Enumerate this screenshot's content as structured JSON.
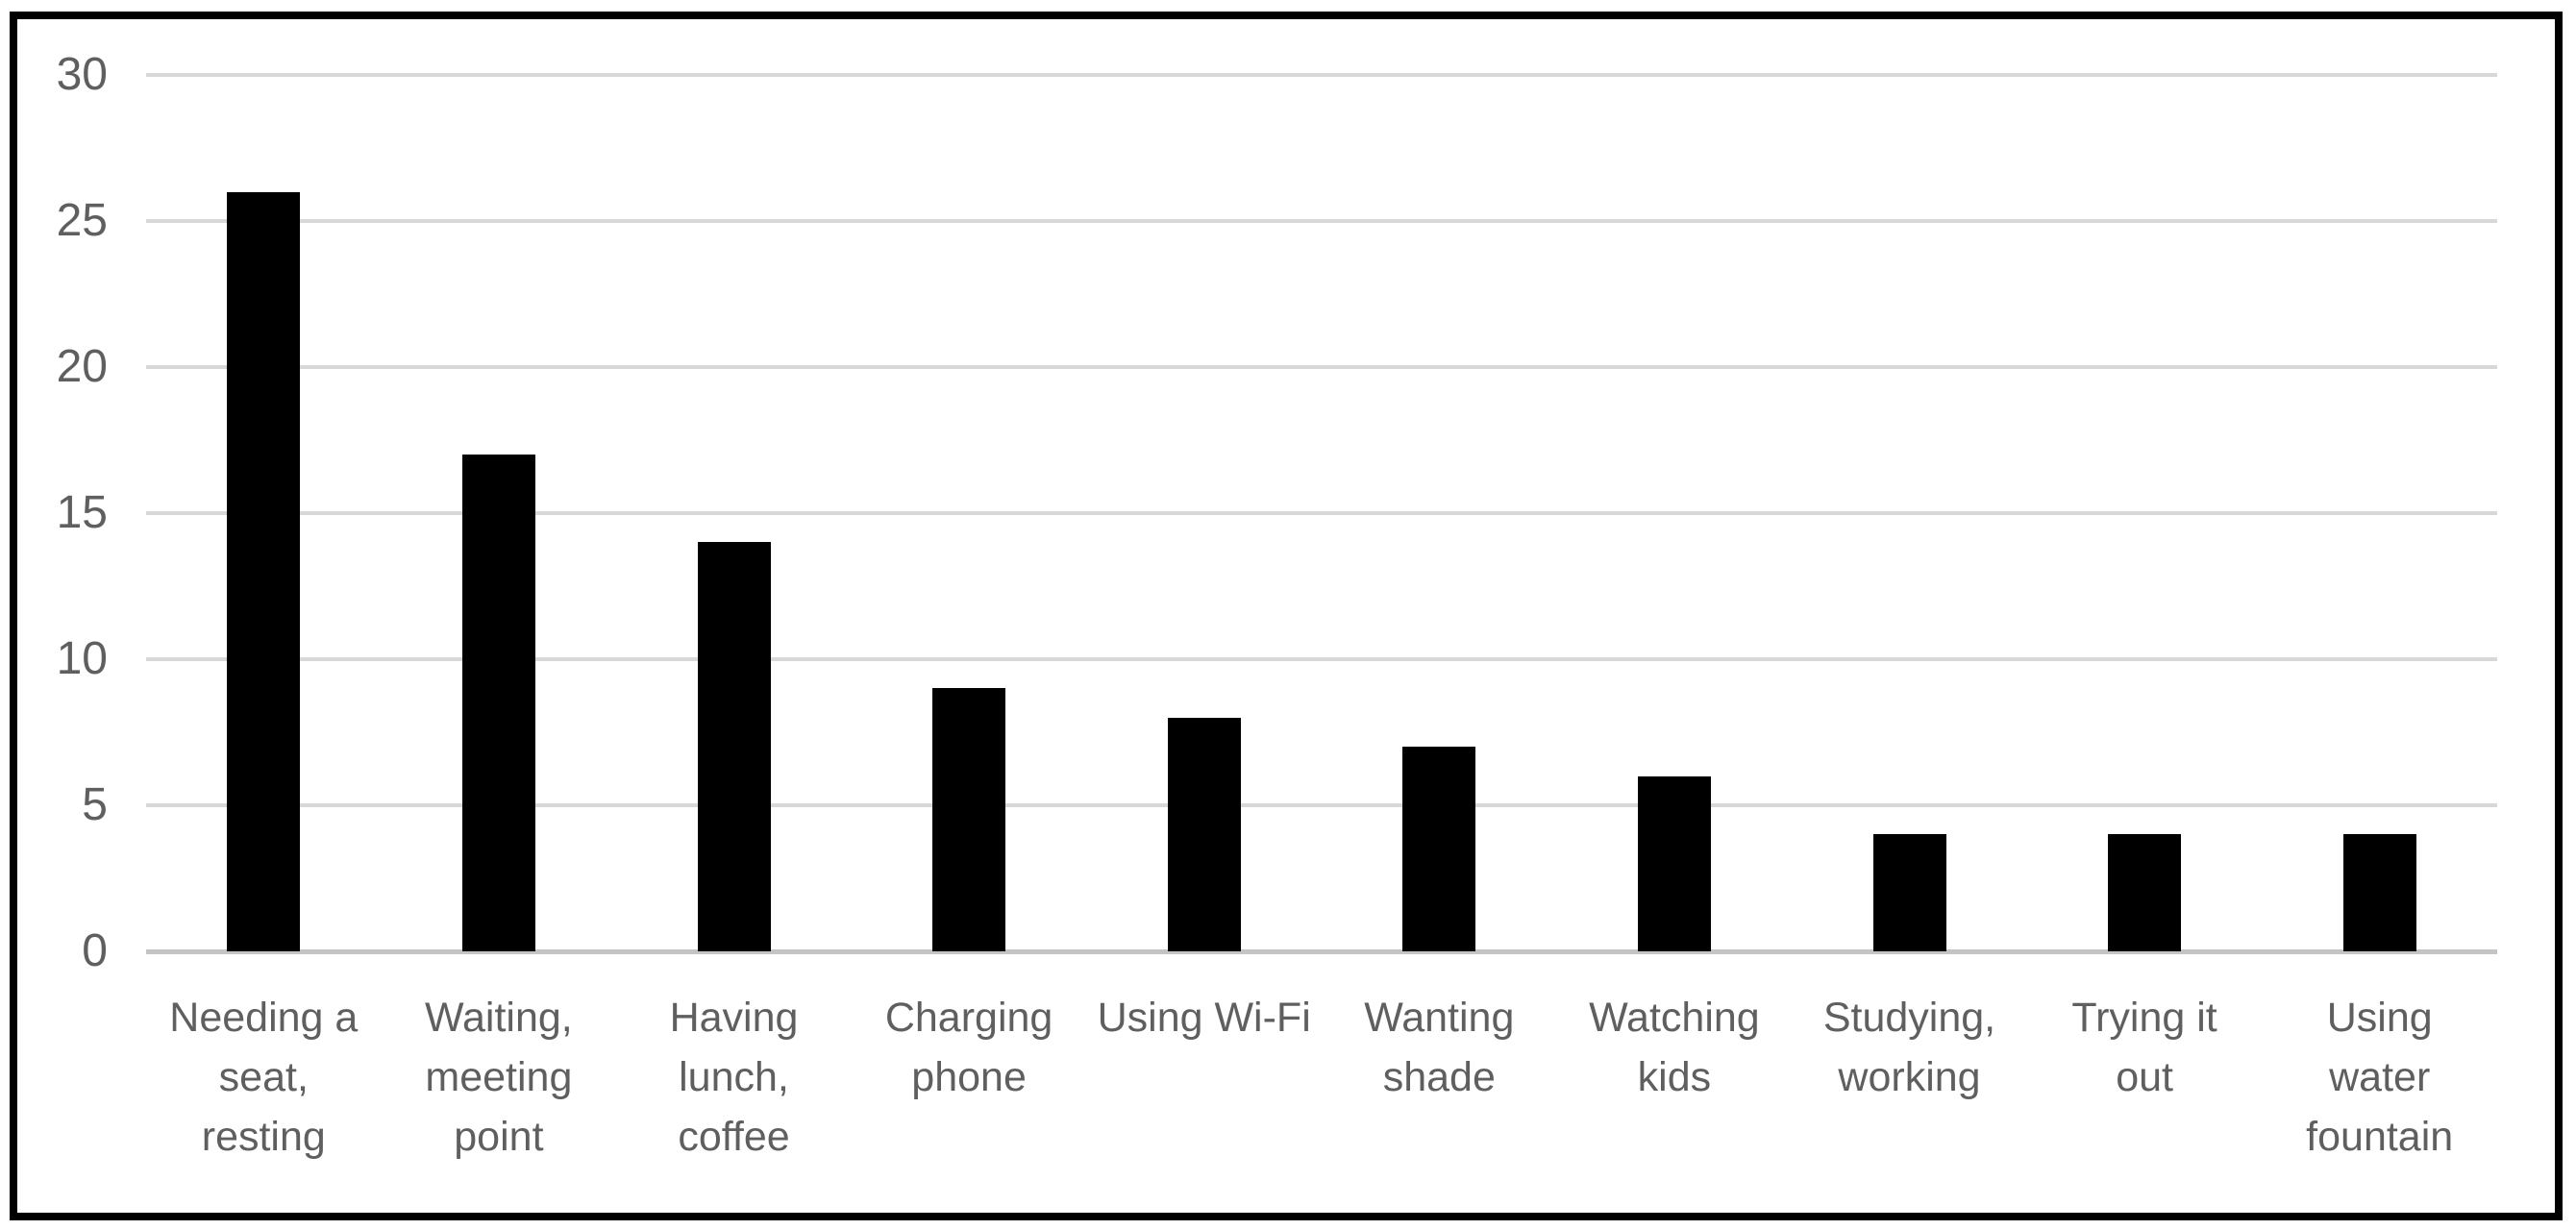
{
  "chart_data": {
    "type": "bar",
    "title": "",
    "xlabel": "",
    "ylabel": "",
    "categories": [
      "Needing a\nseat,\nresting",
      "Waiting,\nmeeting\npoint",
      "Having\nlunch,\ncoffee",
      "Charging\nphone",
      "Using Wi-Fi",
      "Wanting\nshade",
      "Watching\nkids",
      "Studying,\nworking",
      "Trying it\nout",
      "Using\nwater\nfountain"
    ],
    "values": [
      26,
      17,
      14,
      9,
      8,
      7,
      6,
      4,
      4,
      4
    ],
    "ylim": [
      0,
      30
    ],
    "yticks": [
      0,
      5,
      10,
      15,
      20,
      25,
      30
    ],
    "grid": true,
    "legend_position": "none",
    "colors": {
      "bar": "#000000",
      "gridline": "#d8d8d8",
      "zero_line": "#c4c4c4",
      "axis_text": "#5f5f5f",
      "frame_border": "#000000",
      "background": "#ffffff"
    }
  }
}
